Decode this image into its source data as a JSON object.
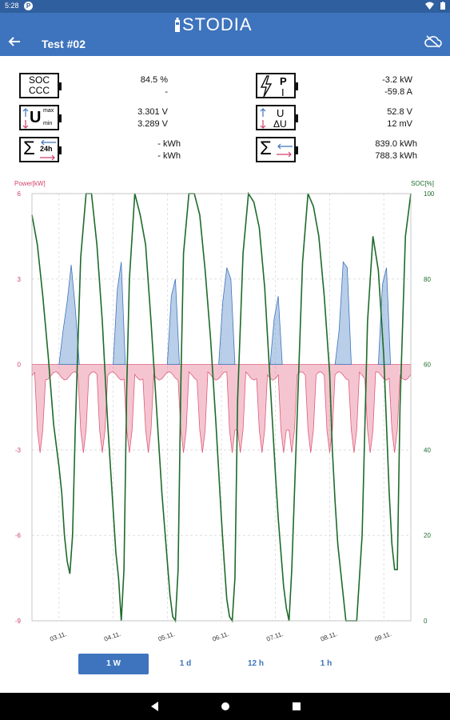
{
  "status_bar": {
    "time": "5:28",
    "notification_badge": "P"
  },
  "app": {
    "brand": "STODIA",
    "title": "Test #02"
  },
  "metrics": {
    "soc": {
      "label_top": "SOC",
      "label_bottom": "CCC",
      "value1": "84.5 %",
      "value2": "-"
    },
    "power": {
      "label_top": "P",
      "label_bottom": "I",
      "value1": "-3.2 kW",
      "value2": "-59.8 A"
    },
    "umaxmin": {
      "label": "U",
      "sup": "max",
      "sub": "min",
      "value1": "3.301 V",
      "value2": "3.289 V"
    },
    "udelta": {
      "label_top": "U",
      "label_bottom": "ΔU",
      "value1": "52.8 V",
      "value2": "12 mV"
    },
    "energy24h": {
      "label": "Σ",
      "tag": "24h",
      "value1": "-  kWh",
      "value2": "-  kWh"
    },
    "energytotal": {
      "label": "Σ",
      "value1": "839.0 kWh",
      "value2": "788.3 kWh"
    }
  },
  "chart_data": {
    "type": "line",
    "left_axis_label": "Power[kW]",
    "right_axis_label": "SOC[%]",
    "ylim_left": [
      -9,
      6
    ],
    "ylim_right": [
      0,
      100
    ],
    "left_ticks": [
      "6",
      "3",
      "0",
      "-3",
      "-6",
      "-9"
    ],
    "right_ticks": [
      "100",
      "80",
      "60",
      "40",
      "20",
      "0"
    ],
    "x_ticks": [
      "03.11.",
      "04.11.",
      "05.11.",
      "06.11.",
      "07.11.",
      "08.11.",
      "09.11."
    ],
    "colors": {
      "power_positive": "#7fa6d6",
      "power_negative": "#e05a79",
      "soc": "#1d6b2a",
      "left_axis": "#d0426b",
      "right_axis": "#1d6b2a"
    },
    "series": [
      {
        "key": "soc",
        "x": [
          0.0,
          0.2,
          0.4,
          0.6,
          0.8,
          1.0,
          1.1,
          1.2,
          1.3,
          1.4,
          1.5,
          1.6,
          1.8,
          2.0,
          2.2,
          2.4,
          2.6,
          2.8,
          3.0,
          3.1,
          3.2,
          3.3,
          3.4,
          3.5,
          3.6,
          3.8,
          4.0,
          4.2,
          4.4,
          4.6,
          4.8,
          5.0,
          5.1,
          5.2,
          5.3,
          5.4,
          5.5,
          5.6,
          5.8,
          6.0,
          6.2,
          6.4,
          6.6,
          6.8,
          7.0,
          7.1,
          7.2,
          7.3,
          7.4,
          7.5,
          7.6,
          7.8,
          8.0,
          8.2,
          8.4,
          8.6,
          8.8,
          9.0,
          9.1,
          9.2,
          9.3,
          9.4,
          9.5,
          9.6,
          9.8,
          10.0,
          10.2,
          10.4,
          10.6,
          10.8,
          11.0,
          11.1,
          11.2,
          11.3,
          11.4,
          11.5,
          11.6,
          11.8,
          12.0,
          12.2,
          12.4,
          12.6,
          12.8,
          13.0,
          13.1,
          13.2,
          13.3,
          13.4,
          13.5,
          13.6,
          13.8,
          14.0
        ],
        "values": [
          95,
          88,
          76,
          62,
          46,
          36,
          30,
          20,
          14,
          11,
          20,
          45,
          85,
          100,
          100,
          88,
          70,
          46,
          26,
          16,
          10,
          0,
          12,
          54,
          80,
          100,
          95,
          88,
          70,
          50,
          30,
          14,
          6,
          1,
          0,
          12,
          55,
          86,
          100,
          100,
          95,
          82,
          66,
          46,
          24,
          14,
          5,
          1,
          0,
          10,
          52,
          86,
          100,
          98,
          92,
          78,
          56,
          34,
          24,
          16,
          8,
          3,
          0,
          12,
          48,
          84,
          100,
          97,
          90,
          76,
          58,
          40,
          28,
          18,
          12,
          6,
          0,
          0,
          0,
          20,
          70,
          90,
          82,
          62,
          46,
          30,
          18,
          12,
          12,
          50,
          90,
          100
        ],
        "name": ""
      }
    ],
    "power_positive": {
      "x": [
        1.0,
        1.15,
        1.3,
        1.45,
        1.6,
        1.75,
        3.0,
        3.15,
        3.3,
        3.45,
        5.0,
        5.15,
        5.3,
        5.45,
        6.9,
        7.05,
        7.2,
        7.35,
        7.5,
        8.8,
        8.95,
        9.1,
        9.25,
        11.2,
        11.35,
        11.5,
        11.65,
        11.8,
        12.8,
        12.95,
        13.1,
        13.25
      ],
      "values": [
        0,
        1.2,
        2.2,
        3.5,
        2.0,
        0,
        0,
        2.6,
        3.6,
        0,
        0,
        2.4,
        3.0,
        0,
        0,
        2.2,
        3.4,
        3.0,
        0,
        0,
        1.6,
        2.4,
        0,
        0,
        1.2,
        3.6,
        3.4,
        0,
        0,
        2.8,
        3.4,
        0
      ]
    },
    "power_negative_spikes": [
      0.3,
      1.9,
      2.6,
      3.6,
      4.3,
      5.6,
      6.3,
      7.4,
      7.7,
      8.5,
      9.3,
      9.6,
      10.3,
      11.0,
      11.9,
      12.5,
      13.4
    ],
    "power_negative_baseline": -0.4
  },
  "tabs": [
    "1 W",
    "1 d",
    "12 h",
    "1 h"
  ]
}
